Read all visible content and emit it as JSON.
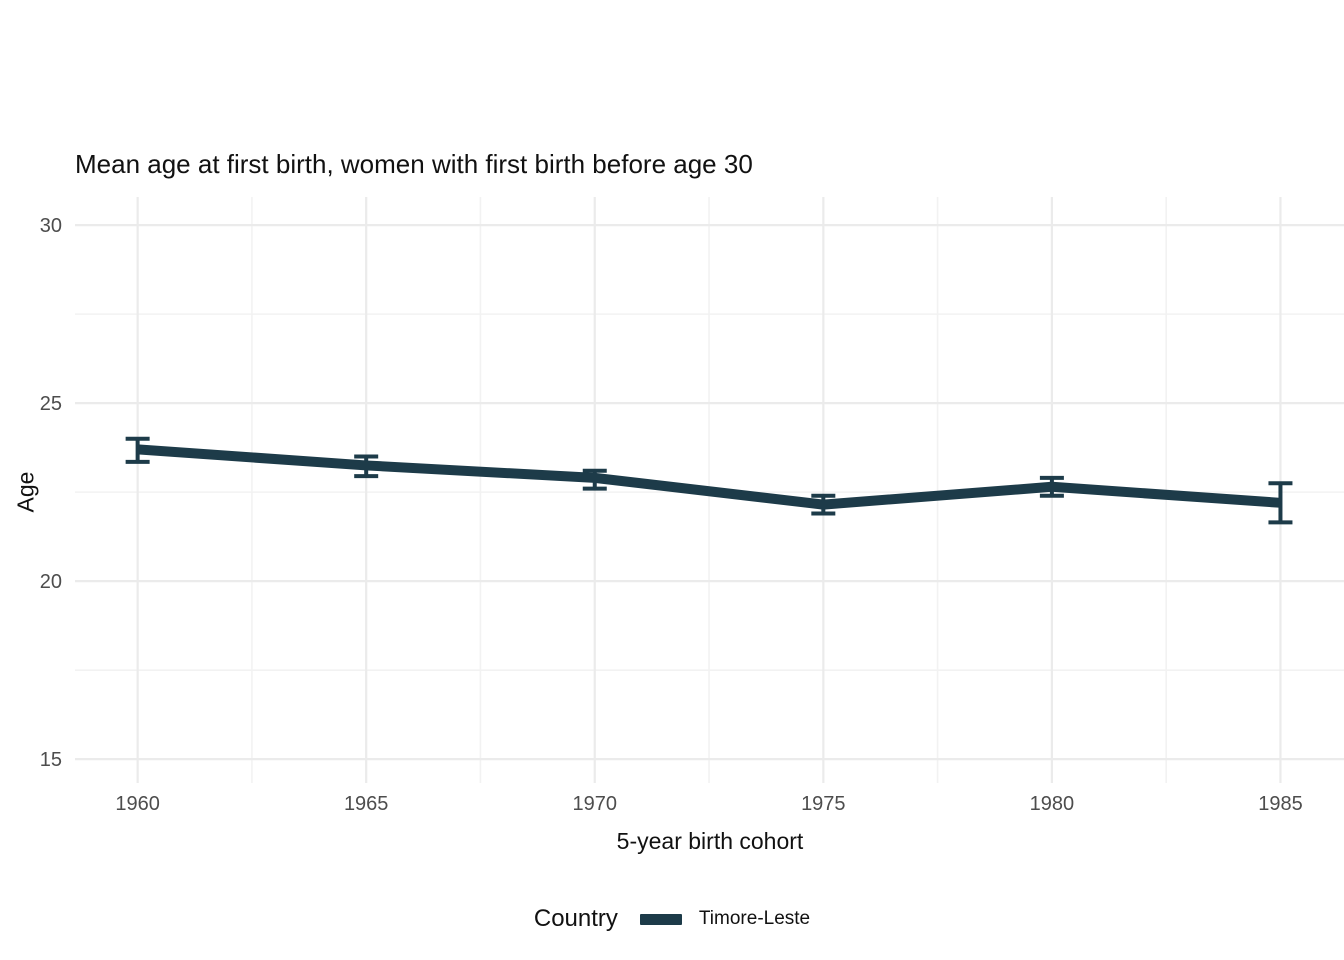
{
  "colors": {
    "background": "#ffffff",
    "grid_major": "#ebebeb",
    "grid_minor": "#f2f2f2",
    "tick_label": "#4d4d4d",
    "text": "#111111",
    "series_line": "#1d3b49"
  },
  "chart_data": {
    "type": "line",
    "title": "Mean age at first birth, women with first birth before age 30",
    "xlabel": "5-year birth cohort",
    "ylabel": "Age",
    "x": [
      1960,
      1965,
      1970,
      1975,
      1980,
      1985
    ],
    "series": [
      {
        "name": "Timore-Leste",
        "color": "#1d3b49",
        "mean": [
          23.7,
          23.25,
          22.9,
          22.15,
          22.65,
          22.2
        ],
        "ci_low": [
          23.35,
          22.95,
          22.6,
          21.9,
          22.4,
          21.65
        ],
        "ci_high": [
          24.0,
          23.5,
          23.1,
          22.4,
          22.9,
          22.75
        ]
      }
    ],
    "x_ticks": [
      1960,
      1965,
      1970,
      1975,
      1980,
      1985
    ],
    "y_ticks": [
      15,
      20,
      25,
      30
    ],
    "x_minor_ticks": [
      1962.5,
      1967.5,
      1972.5,
      1977.5,
      1982.5
    ],
    "y_minor_ticks": [
      17.5,
      22.5,
      27.5
    ],
    "xlim": [
      1958.63,
      1986.39
    ],
    "ylim": [
      14.33,
      30.79
    ],
    "grid": true,
    "legend": {
      "title": "Country",
      "position": "bottom"
    }
  }
}
